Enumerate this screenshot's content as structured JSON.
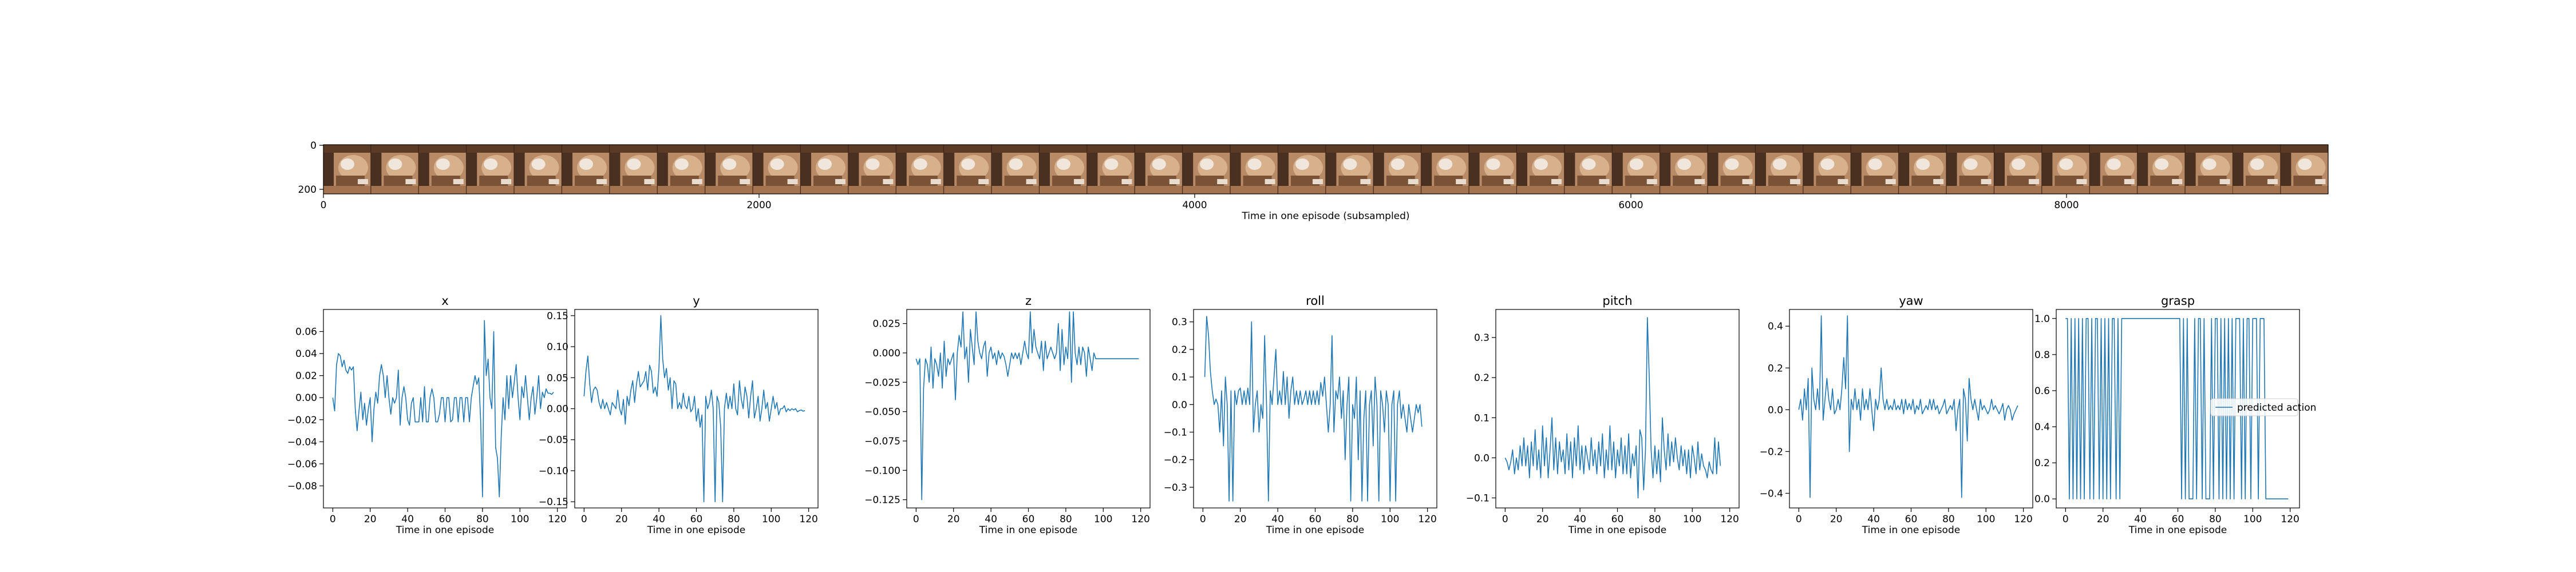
{
  "figure": {
    "filmstrip": {
      "xlabel": "Time in one episode (subsampled)",
      "xlim": [
        0,
        9200
      ],
      "xticks": [
        0,
        2000,
        4000,
        6000,
        8000
      ],
      "yticks": [
        0,
        200
      ],
      "frame_count": 42,
      "image_colors": [
        "#4a3020",
        "#b88a66",
        "#d7b08c",
        "#7a5236",
        "#f0e6dc"
      ]
    },
    "line_color": "#1f77b4",
    "legend_label": "predicted action"
  },
  "chart_data": [
    {
      "type": "line",
      "title": "x",
      "xlabel": "Time in one episode",
      "ylabel": "",
      "xlim": [
        -5,
        125
      ],
      "ylim": [
        -0.1,
        0.08
      ],
      "xticks": [
        0,
        20,
        40,
        60,
        80,
        100,
        120
      ],
      "yticks": [
        -0.08,
        -0.06,
        -0.04,
        -0.02,
        0.0,
        0.02,
        0.04,
        0.06
      ],
      "yticklabels": [
        "−0.08",
        "−0.06",
        "−0.04",
        "−0.02",
        "0.00",
        "0.02",
        "0.04",
        "0.06"
      ],
      "x_start": 0,
      "y": [
        0.0,
        -0.012,
        0.03,
        0.04,
        0.038,
        0.028,
        0.034,
        0.025,
        0.022,
        0.028,
        0.025,
        0.028,
        -0.01,
        -0.03,
        -0.012,
        0.005,
        -0.02,
        -0.005,
        -0.025,
        -0.01,
        0.0,
        -0.04,
        -0.01,
        0.005,
        -0.005,
        0.02,
        0.03,
        0.02,
        0.0,
        0.02,
        0.0,
        -0.015,
        0.0,
        -0.005,
        0.0,
        0.025,
        -0.025,
        0.0,
        0.01,
        0.0,
        -0.02,
        -0.025,
        -0.005,
        0.0,
        -0.022,
        -0.022,
        -0.022,
        0.0,
        -0.022,
        0.01,
        -0.022,
        -0.022,
        0.0,
        0.008,
        0.0,
        -0.022,
        -0.022,
        -0.015,
        0.0,
        0.0,
        -0.022,
        0.0,
        0.0,
        -0.022,
        -0.02,
        0.0,
        0.0,
        -0.022,
        0.0,
        0.0,
        -0.022,
        0.0,
        0.0,
        -0.022,
        0.0,
        0.01,
        0.02,
        0.012,
        0.018,
        -0.02,
        -0.09,
        0.07,
        0.02,
        0.035,
        0.0,
        -0.01,
        0.06,
        -0.045,
        -0.055,
        -0.09,
        -0.035,
        0.0,
        -0.02,
        0.02,
        -0.01,
        0.02,
        0.0,
        0.015,
        0.03,
        0.0,
        -0.02,
        0.01,
        0.0,
        0.02,
        0.0,
        -0.02,
        0.0,
        0.01,
        -0.015,
        0.0,
        0.02,
        -0.01,
        0.005,
        0.0,
        0.008,
        0.004,
        0.004,
        0.003,
        0.005
      ]
    },
    {
      "type": "line",
      "title": "y",
      "xlabel": "Time in one episode",
      "ylabel": "",
      "xlim": [
        -5,
        125
      ],
      "ylim": [
        -0.16,
        0.16
      ],
      "xticks": [
        0,
        20,
        40,
        60,
        80,
        100,
        120
      ],
      "yticks": [
        -0.15,
        -0.1,
        -0.05,
        0.0,
        0.05,
        0.1,
        0.15
      ],
      "yticklabels": [
        "−0.15",
        "−0.10",
        "−0.05",
        "0.00",
        "0.05",
        "0.10",
        "0.15"
      ],
      "x_start": 0,
      "y": [
        0.02,
        0.06,
        0.085,
        0.04,
        0.01,
        0.03,
        0.035,
        0.03,
        0.01,
        0.0,
        0.015,
        0.0,
        0.01,
        0.0,
        -0.01,
        0.01,
        0.005,
        0.0,
        0.03,
        0.0,
        -0.01,
        0.015,
        -0.025,
        0.02,
        0.005,
        0.03,
        0.045,
        0.01,
        0.04,
        0.06,
        0.035,
        0.04,
        0.045,
        0.06,
        0.03,
        0.07,
        0.06,
        0.025,
        0.035,
        0.02,
        0.065,
        0.15,
        0.08,
        0.05,
        0.065,
        0.03,
        0.05,
        0.0,
        0.045,
        0.04,
        0.0,
        0.01,
        0.0,
        0.025,
        0.005,
        0.0,
        0.02,
        -0.005,
        0.0,
        0.02,
        -0.02,
        0.0,
        -0.03,
        -0.01,
        -0.15,
        0.02,
        0.0,
        0.01,
        0.03,
        0.0,
        -0.15,
        0.02,
        0.01,
        -0.03,
        -0.15,
        0.0,
        0.025,
        0.0,
        0.02,
        0.0,
        0.04,
        0.0,
        -0.01,
        0.045,
        0.015,
        0.0,
        0.035,
        0.02,
        -0.015,
        0.02,
        0.045,
        -0.015,
        0.0,
        0.02,
        -0.02,
        0.0,
        0.03,
        0.0,
        0.01,
        -0.02,
        0.0,
        0.02,
        0.0,
        0.01,
        -0.01,
        0.0,
        0.0,
        0.005,
        -0.005,
        0.0,
        -0.003,
        0.0,
        -0.002,
        0.0,
        -0.005,
        -0.003,
        -0.002,
        -0.004,
        -0.003
      ]
    },
    {
      "type": "line",
      "title": "z",
      "xlabel": "Time in one episode",
      "ylabel": "",
      "xlim": [
        -5,
        125
      ],
      "ylim": [
        -0.132,
        0.037
      ],
      "xticks": [
        0,
        20,
        40,
        60,
        80,
        100,
        120
      ],
      "yticks": [
        -0.125,
        -0.1,
        -0.075,
        -0.05,
        -0.025,
        0.0,
        0.025
      ],
      "yticklabels": [
        "−0.125",
        "−0.100",
        "−0.075",
        "−0.050",
        "−0.025",
        "0.000",
        "0.025"
      ],
      "x_start": 0,
      "y": [
        -0.005,
        -0.01,
        -0.005,
        -0.125,
        -0.03,
        -0.005,
        -0.01,
        -0.025,
        0.005,
        -0.03,
        -0.005,
        -0.01,
        -0.02,
        0.0,
        -0.03,
        0.01,
        -0.02,
        -0.005,
        -0.01,
        -0.005,
        0.0,
        -0.04,
        0.0,
        0.015,
        0.005,
        0.035,
        -0.005,
        0.005,
        -0.025,
        0.02,
        0.005,
        -0.01,
        0.035,
        0.01,
        0.0,
        -0.005,
        0.005,
        0.01,
        -0.02,
        0.0,
        0.005,
        -0.005,
        0.0,
        -0.01,
        0.002,
        -0.005,
        0.0,
        -0.003,
        -0.01,
        -0.02,
        -0.01,
        0.0,
        -0.005,
        0.0,
        -0.005,
        0.0,
        -0.01,
        0.0,
        0.01,
        0.0,
        -0.005,
        0.035,
        0.0,
        0.02,
        0.005,
        0.0,
        -0.005,
        0.01,
        -0.015,
        0.01,
        -0.005,
        0.0,
        0.005,
        0.0,
        -0.005,
        0.0,
        0.025,
        -0.015,
        0.02,
        -0.01,
        0.005,
        -0.005,
        0.035,
        -0.025,
        0.035,
        0.0,
        -0.01,
        0.005,
        -0.01,
        0.005,
        0.0,
        -0.02,
        0.005,
        -0.005,
        -0.015,
        0.0,
        -0.005,
        -0.005,
        -0.005,
        -0.005,
        -0.005,
        -0.005,
        -0.005,
        -0.005,
        -0.005,
        -0.005,
        -0.005,
        -0.005,
        -0.005,
        -0.005,
        -0.005,
        -0.005,
        -0.005,
        -0.005,
        -0.005,
        -0.005,
        -0.005,
        -0.005,
        -0.005,
        -0.005
      ]
    },
    {
      "type": "line",
      "title": "roll",
      "xlabel": "Time in one episode",
      "ylabel": "",
      "xlim": [
        -5,
        125
      ],
      "ylim": [
        -0.375,
        0.345
      ],
      "xticks": [
        0,
        20,
        40,
        60,
        80,
        100,
        120
      ],
      "yticks": [
        -0.3,
        -0.2,
        -0.1,
        0.0,
        0.1,
        0.2,
        0.3
      ],
      "yticklabels": [
        "−0.3",
        "−0.2",
        "−0.1",
        "0.0",
        "0.1",
        "0.2",
        "0.3"
      ],
      "x_start": 1,
      "y": [
        0.1,
        0.32,
        0.25,
        0.12,
        0.05,
        0.0,
        0.02,
        0.0,
        -0.1,
        0.05,
        -0.15,
        0.1,
        0.0,
        -0.35,
        0.05,
        -0.35,
        0.05,
        0.0,
        0.05,
        0.06,
        0.0,
        0.05,
        0.0,
        0.06,
        0.0,
        0.3,
        -0.1,
        0.0,
        0.05,
        -0.1,
        0.0,
        -0.05,
        0.25,
        0.0,
        -0.35,
        0.05,
        0.0,
        0.1,
        0.2,
        0.0,
        0.05,
        0.0,
        0.12,
        0.0,
        0.1,
        -0.05,
        0.05,
        0.1,
        0.0,
        0.05,
        0.0,
        0.05,
        0.0,
        0.02,
        0.05,
        0.0,
        0.05,
        0.0,
        0.05,
        0.0,
        0.05,
        0.0,
        0.08,
        0.03,
        0.1,
        0.0,
        -0.1,
        0.0,
        0.25,
        -0.1,
        0.05,
        0.02,
        0.1,
        -0.05,
        0.05,
        -0.2,
        0.0,
        0.1,
        -0.35,
        0.0,
        -0.05,
        0.1,
        -0.2,
        0.05,
        -0.35,
        -0.05,
        0.05,
        -0.35,
        0.0,
        0.05,
        -0.15,
        0.1,
        0.0,
        -0.35,
        0.05,
        0.0,
        -0.1,
        0.05,
        0.0,
        -0.35,
        0.0,
        0.05,
        -0.35,
        0.0,
        0.05,
        -0.05,
        0.0,
        -0.05,
        -0.1,
        0.0,
        -0.05,
        -0.1,
        -0.05,
        0.0,
        -0.03,
        0.0,
        -0.08
      ]
    },
    {
      "type": "line",
      "title": "pitch",
      "xlabel": "Time in one episode",
      "ylabel": "",
      "xlim": [
        -5,
        125
      ],
      "ylim": [
        -0.125,
        0.37
      ],
      "xticks": [
        0,
        20,
        40,
        60,
        80,
        100,
        120
      ],
      "yticks": [
        -0.1,
        0.0,
        0.1,
        0.2,
        0.3
      ],
      "yticklabels": [
        "−0.1",
        "0.0",
        "0.1",
        "0.2",
        "0.3"
      ],
      "x_start": 0,
      "y": [
        0.0,
        -0.01,
        -0.03,
        -0.01,
        0.02,
        -0.04,
        0.0,
        -0.03,
        0.03,
        -0.02,
        0.05,
        -0.02,
        0.03,
        -0.05,
        0.04,
        -0.02,
        0.07,
        -0.03,
        0.02,
        -0.05,
        0.08,
        -0.02,
        0.05,
        -0.05,
        0.02,
        0.1,
        -0.03,
        0.05,
        -0.04,
        0.04,
        -0.01,
        0.02,
        -0.04,
        0.06,
        -0.03,
        0.04,
        -0.05,
        0.05,
        -0.02,
        0.08,
        -0.03,
        0.03,
        -0.04,
        0.03,
        0.0,
        -0.03,
        0.05,
        -0.02,
        0.02,
        -0.04,
        0.04,
        -0.02,
        0.06,
        -0.05,
        0.02,
        -0.03,
        0.08,
        -0.03,
        0.04,
        -0.05,
        0.02,
        -0.02,
        0.05,
        -0.04,
        0.03,
        -0.04,
        0.06,
        -0.05,
        0.01,
        -0.02,
        0.03,
        -0.1,
        0.07,
        0.05,
        -0.08,
        0.02,
        0.35,
        0.2,
        0.02,
        -0.05,
        0.03,
        -0.04,
        0.02,
        -0.06,
        0.1,
        0.02,
        -0.03,
        0.06,
        -0.02,
        0.04,
        -0.01,
        0.05,
        0.0,
        -0.03,
        0.03,
        -0.02,
        0.02,
        -0.04,
        0.02,
        -0.05,
        0.03,
        0.0,
        -0.04,
        0.04,
        -0.03,
        0.01,
        -0.02,
        -0.03,
        -0.05,
        -0.01,
        -0.03,
        -0.04,
        0.05,
        -0.04,
        0.04,
        -0.02
      ]
    },
    {
      "type": "line",
      "title": "yaw",
      "xlabel": "Time in one episode",
      "ylabel": "",
      "xlim": [
        -5,
        125
      ],
      "ylim": [
        -0.47,
        0.48
      ],
      "xticks": [
        0,
        20,
        40,
        60,
        80,
        100,
        120
      ],
      "yticks": [
        -0.4,
        -0.2,
        0.0,
        0.2,
        0.4
      ],
      "yticklabels": [
        "−0.4",
        "−0.2",
        "0.0",
        "0.2",
        "0.4"
      ],
      "x_start": 0,
      "y": [
        0.0,
        0.05,
        -0.05,
        0.1,
        0.0,
        0.15,
        -0.42,
        0.2,
        0.05,
        0.0,
        0.1,
        0.0,
        0.45,
        -0.05,
        0.05,
        0.15,
        0.05,
        0.0,
        0.1,
        -0.02,
        0.0,
        0.05,
        0.0,
        0.1,
        0.25,
        0.1,
        0.45,
        -0.2,
        0.05,
        0.0,
        0.1,
        0.0,
        0.05,
        -0.05,
        0.1,
        0.0,
        0.05,
        0.0,
        0.1,
        0.0,
        -0.1,
        0.05,
        0.0,
        0.05,
        0.2,
        0.05,
        0.0,
        0.05,
        0.0,
        0.02,
        0.0,
        0.05,
        0.0,
        0.02,
        0.0,
        0.05,
        -0.02,
        0.05,
        0.0,
        0.03,
        0.0,
        0.05,
        -0.02,
        0.02,
        0.0,
        0.05,
        -0.02,
        0.0,
        0.02,
        0.0,
        0.05,
        0.0,
        0.05,
        0.0,
        0.02,
        -0.02,
        0.0,
        0.02,
        0.05,
        -0.02,
        0.0,
        0.02,
        0.0,
        0.05,
        -0.1,
        0.0,
        0.05,
        -0.42,
        0.1,
        0.05,
        -0.15,
        0.15,
        0.05,
        0.0,
        0.05,
        0.0,
        -0.05,
        0.05,
        0.0,
        0.02,
        0.0,
        -0.02,
        0.0,
        0.05,
        0.0,
        0.02,
        0.0,
        -0.02,
        0.0,
        0.03,
        -0.05,
        0.0,
        0.02,
        0.0,
        -0.05,
        -0.02,
        0.0,
        0.02
      ]
    },
    {
      "type": "line",
      "title": "grasp",
      "xlabel": "Time in one episode",
      "ylabel": "",
      "xlim": [
        -5,
        125
      ],
      "ylim": [
        -0.05,
        1.05
      ],
      "xticks": [
        0,
        20,
        40,
        60,
        80,
        100,
        120
      ],
      "yticks": [
        0.0,
        0.2,
        0.4,
        0.6,
        0.8,
        1.0
      ],
      "yticklabels": [
        "0.0",
        "0.2",
        "0.4",
        "0.6",
        "0.8",
        "1.0"
      ],
      "x_start": 0,
      "y": [
        1,
        1,
        0,
        1,
        0,
        1,
        0,
        1,
        0,
        1,
        0,
        1,
        1,
        0,
        1,
        0,
        1,
        1,
        0,
        1,
        0,
        1,
        0,
        1,
        0,
        1,
        1,
        0,
        1,
        0,
        1,
        1,
        1,
        1,
        1,
        1,
        1,
        1,
        1,
        1,
        1,
        1,
        1,
        1,
        1,
        1,
        1,
        1,
        1,
        1,
        1,
        1,
        1,
        1,
        1,
        1,
        1,
        1,
        1,
        1,
        1,
        1,
        0,
        1,
        0,
        1,
        0,
        0,
        0,
        1,
        0,
        1,
        1,
        0,
        1,
        0,
        0,
        0,
        1,
        0,
        1,
        1,
        0,
        1,
        0,
        1,
        0,
        1,
        0,
        1,
        0,
        1,
        1,
        1,
        0,
        1,
        0,
        1,
        1,
        0,
        1,
        1,
        1,
        0,
        1,
        1,
        1,
        0,
        0,
        0,
        0,
        0,
        0,
        0,
        0,
        0,
        0,
        0,
        0,
        0
      ],
      "legend": "upper-right-of-center"
    }
  ]
}
